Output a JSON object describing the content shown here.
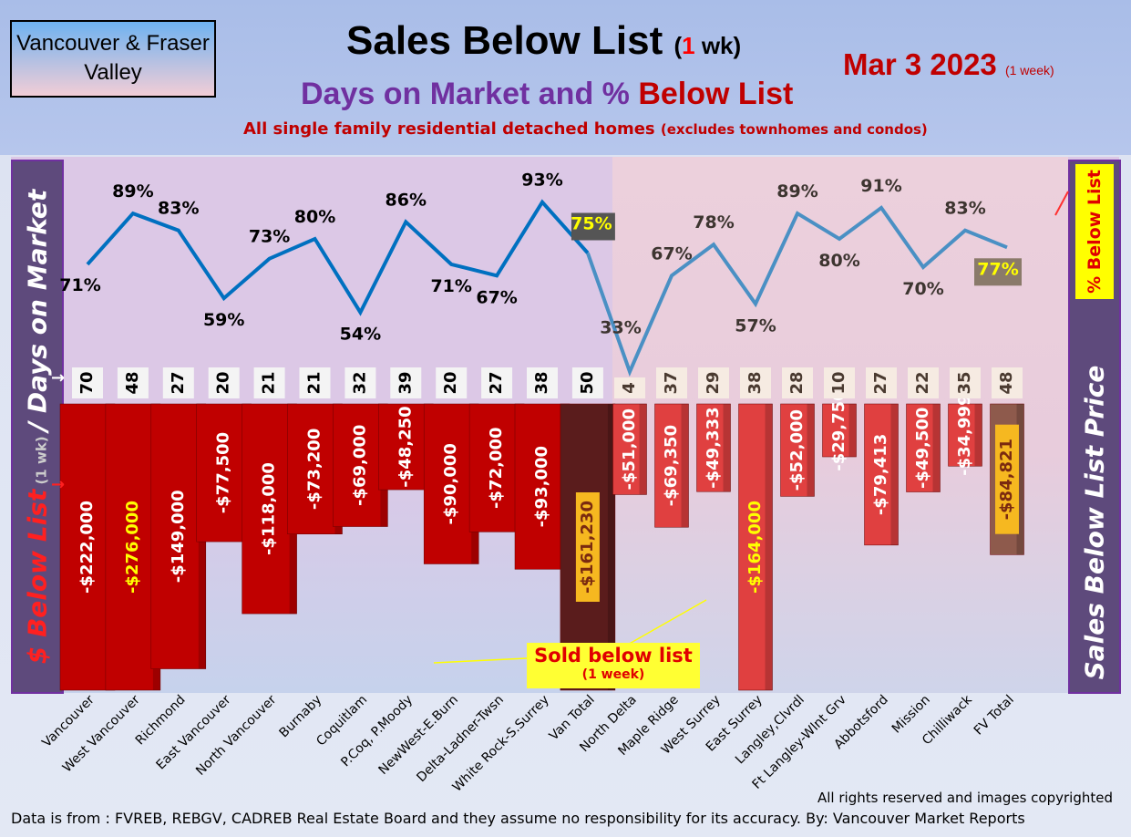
{
  "header": {
    "region": "Vancouver & Fraser Valley",
    "title": "Sales Below List",
    "title_paren_open": "(",
    "title_num": "1",
    "title_paren_rest": " wk)",
    "subtitle_a": "Days on Market and % ",
    "subtitle_b": "Below List",
    "description": "All single family residential detached homes ",
    "description_small": "(excludes townhomes and condos)",
    "date": "Mar 3  2023",
    "date_note": "(1 week)"
  },
  "left_axis": {
    "part1": "$ Below List",
    "part2": " (1 wk) ",
    "part3": "/ Days on Market"
  },
  "right_axis": {
    "label": "Sales Below List Price",
    "box": "% Below List"
  },
  "callout": {
    "label": "Sold below list",
    "sub": "(1 week)"
  },
  "footer": {
    "rights": "All rights reserved and  images copyrighted",
    "source": "Data is from : FVREB, REBGV, CADREB Real Estate Board and they assume no responsibility for its accuracy. By: Vancouver Market Reports"
  },
  "colors": {
    "line": "#0070c0",
    "line_fv": "#4a90c4",
    "bar_van": "#c00000",
    "bar_fv": "#e04040",
    "van_total": "#5a1c1c",
    "fv_total": "#8e5a4c"
  },
  "chart_data": {
    "type": "bar+line",
    "categories": [
      "Vancouver",
      "West Vancouver",
      "Richmond",
      "East Vancouver",
      "North Vancouver",
      "Burnaby",
      "Coquitlam",
      "P.Coq, P.Moody",
      "NewWest-E.Burn",
      "Delta-Ladner-Twsn",
      "White Rock-S.Surrey",
      "Van Total",
      "North Delta",
      "Maple Ridge",
      "West Surrey",
      "East Surrey",
      "Langley,Clvrdl",
      "Ft Langley-Wlnt Grv",
      "Abbotsford",
      "Mission",
      "Chilliwack",
      "FV Total"
    ],
    "series": [
      {
        "name": "% Below List",
        "type": "line",
        "values": [
          71,
          89,
          83,
          59,
          73,
          80,
          54,
          86,
          71,
          67,
          93,
          75,
          33,
          67,
          78,
          57,
          89,
          80,
          91,
          70,
          83,
          77
        ]
      },
      {
        "name": "Days on Market",
        "type": "label",
        "values": [
          70,
          48,
          27,
          20,
          21,
          21,
          32,
          39,
          20,
          27,
          38,
          50,
          4,
          37,
          29,
          38,
          28,
          10,
          27,
          22,
          35,
          48
        ]
      },
      {
        "name": "$ Below List",
        "type": "bar",
        "values": [
          -222000,
          -276000,
          -149000,
          -77500,
          -118000,
          -73200,
          -69000,
          -48250,
          -90000,
          -72000,
          -93000,
          -161230,
          -51000,
          -69350,
          -49333,
          -164000,
          -52000,
          -29750,
          -79413,
          -49500,
          -34999,
          -84821
        ],
        "labels": [
          "-$222,000",
          "-$276,000",
          "-$149,000",
          "-$77,500",
          "-$118,000",
          "-$73,200",
          "-$69,000",
          "-$48,250",
          "-$90,000",
          "-$72,000",
          "-$93,000",
          "-$161,230",
          "-$51,000",
          "-$69,350",
          "-$49,333",
          "-$164,000",
          "-$52,000",
          "-$29,750",
          "-$79,413",
          "-$49,500",
          "-$34,999",
          "-$84,821"
        ]
      }
    ],
    "pct_labels": [
      "71%",
      "89%",
      "83%",
      "59%",
      "73%",
      "80%",
      "54%",
      "86%",
      "71%",
      "67%",
      "93%",
      "75%",
      "33%",
      "67%",
      "78%",
      "57%",
      "89%",
      "80%",
      "91%",
      "70%",
      "83%",
      "77%"
    ],
    "grid": false
  }
}
